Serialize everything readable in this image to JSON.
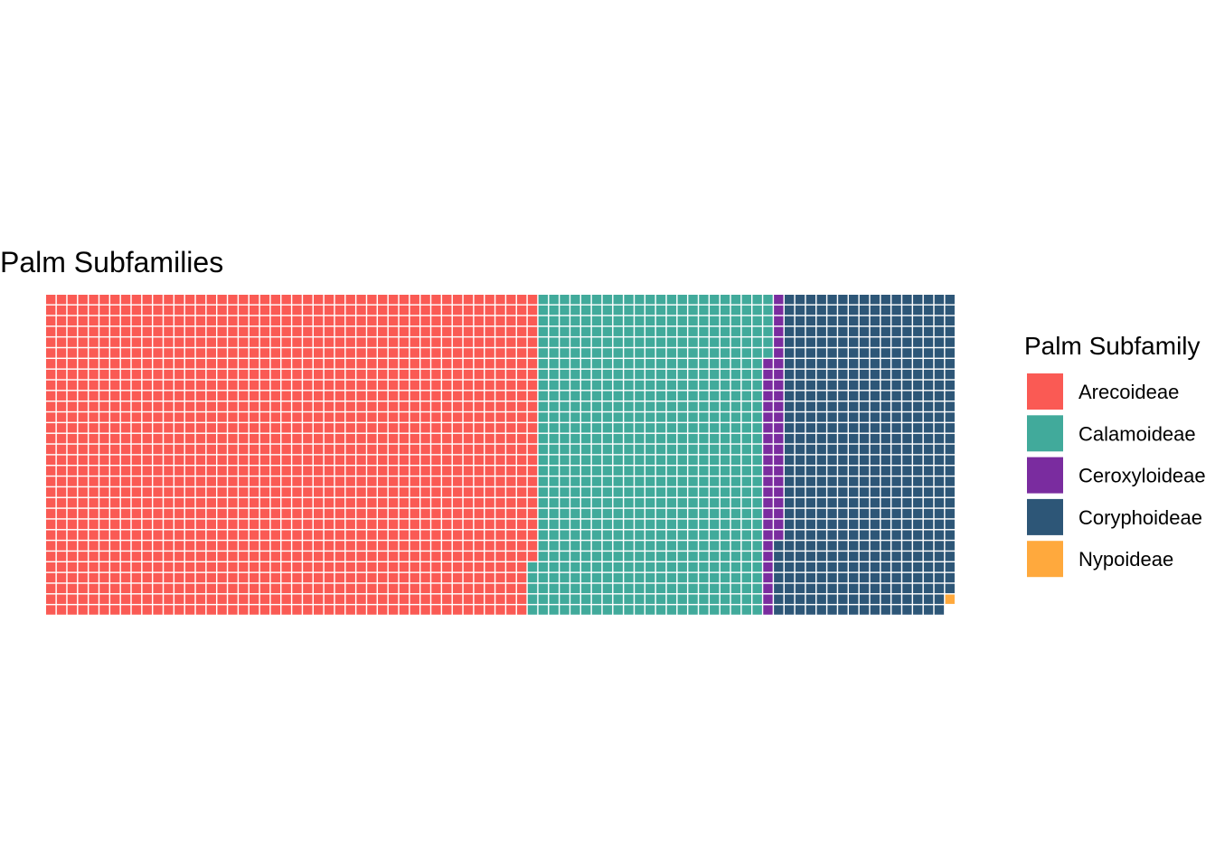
{
  "chart_data": {
    "type": "waffle",
    "title": "Palm Subfamilies",
    "legend_title": "Palm Subfamily",
    "legend_position": "right",
    "rows": 30,
    "fill_order": "column-wise, top to bottom, left to right",
    "categories": [
      "Arecoideae",
      "Calamoideae",
      "Ceroxyloideae",
      "Coryphoideae",
      "Nypoideae"
    ],
    "values": [
      1375,
      641,
      47,
      485,
      1
    ],
    "colors": [
      "#FA5A54",
      "#41AA9B",
      "#7A2C9F",
      "#2D5677",
      "#FFA93D"
    ]
  }
}
